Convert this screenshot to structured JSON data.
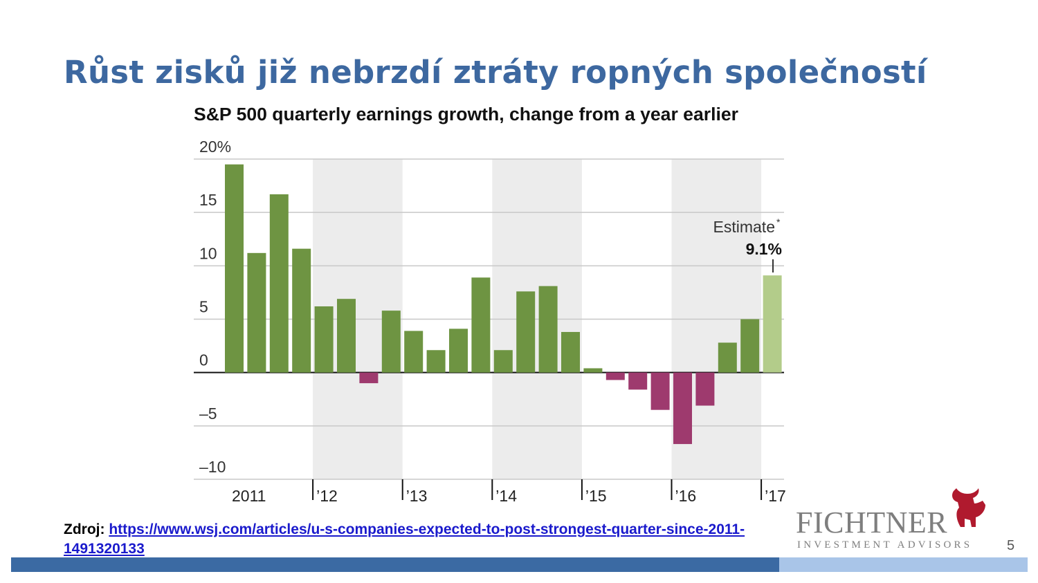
{
  "slide": {
    "title": "Růst zisků již nebrzdí ztráty ropných společností",
    "source_label": "Zdroj:",
    "source_link": "https://www.wsj.com/articles/u-s-companies-expected-to-post-strongest-quarter-since-2011-1491320133",
    "page_number": "5",
    "logo_name": "FICHTNER",
    "logo_subtitle": "INVESTMENT ADVISORS",
    "logo_color": "#b01a2e"
  },
  "chart_data": {
    "type": "bar",
    "title": "S&P 500 quarterly earnings growth, change from a year earlier",
    "xlabel": "",
    "ylabel": "",
    "ylim": [
      -10,
      20
    ],
    "yticks": [
      {
        "value": 20,
        "label": "20%"
      },
      {
        "value": 15,
        "label": "15"
      },
      {
        "value": 10,
        "label": "10"
      },
      {
        "value": 5,
        "label": "5"
      },
      {
        "value": 0,
        "label": "0"
      },
      {
        "value": -5,
        "label": "–5"
      },
      {
        "value": -10,
        "label": "–10"
      }
    ],
    "year_labels": [
      "2011",
      "’12",
      "’13",
      "’14",
      "’15",
      "’16",
      "’17"
    ],
    "shaded_years": [
      "’12",
      "’14",
      "’16"
    ],
    "grid": true,
    "colors": {
      "positive": "#6e9442",
      "negative": "#9e3a6e",
      "estimate": "#b3cc8a",
      "shade": "#ececec",
      "grid": "#c8c8c8"
    },
    "values": [
      19.5,
      11.2,
      16.7,
      11.6,
      6.2,
      6.9,
      -1.0,
      5.8,
      3.9,
      2.1,
      4.1,
      8.9,
      2.1,
      7.6,
      8.1,
      3.8,
      0.4,
      -0.7,
      -1.6,
      -3.5,
      -6.7,
      -3.1,
      2.8,
      5.0,
      9.1
    ],
    "estimate_index": 24,
    "annotation": {
      "label": "Estimate",
      "marker": "*",
      "value_label": "9.1%"
    }
  }
}
